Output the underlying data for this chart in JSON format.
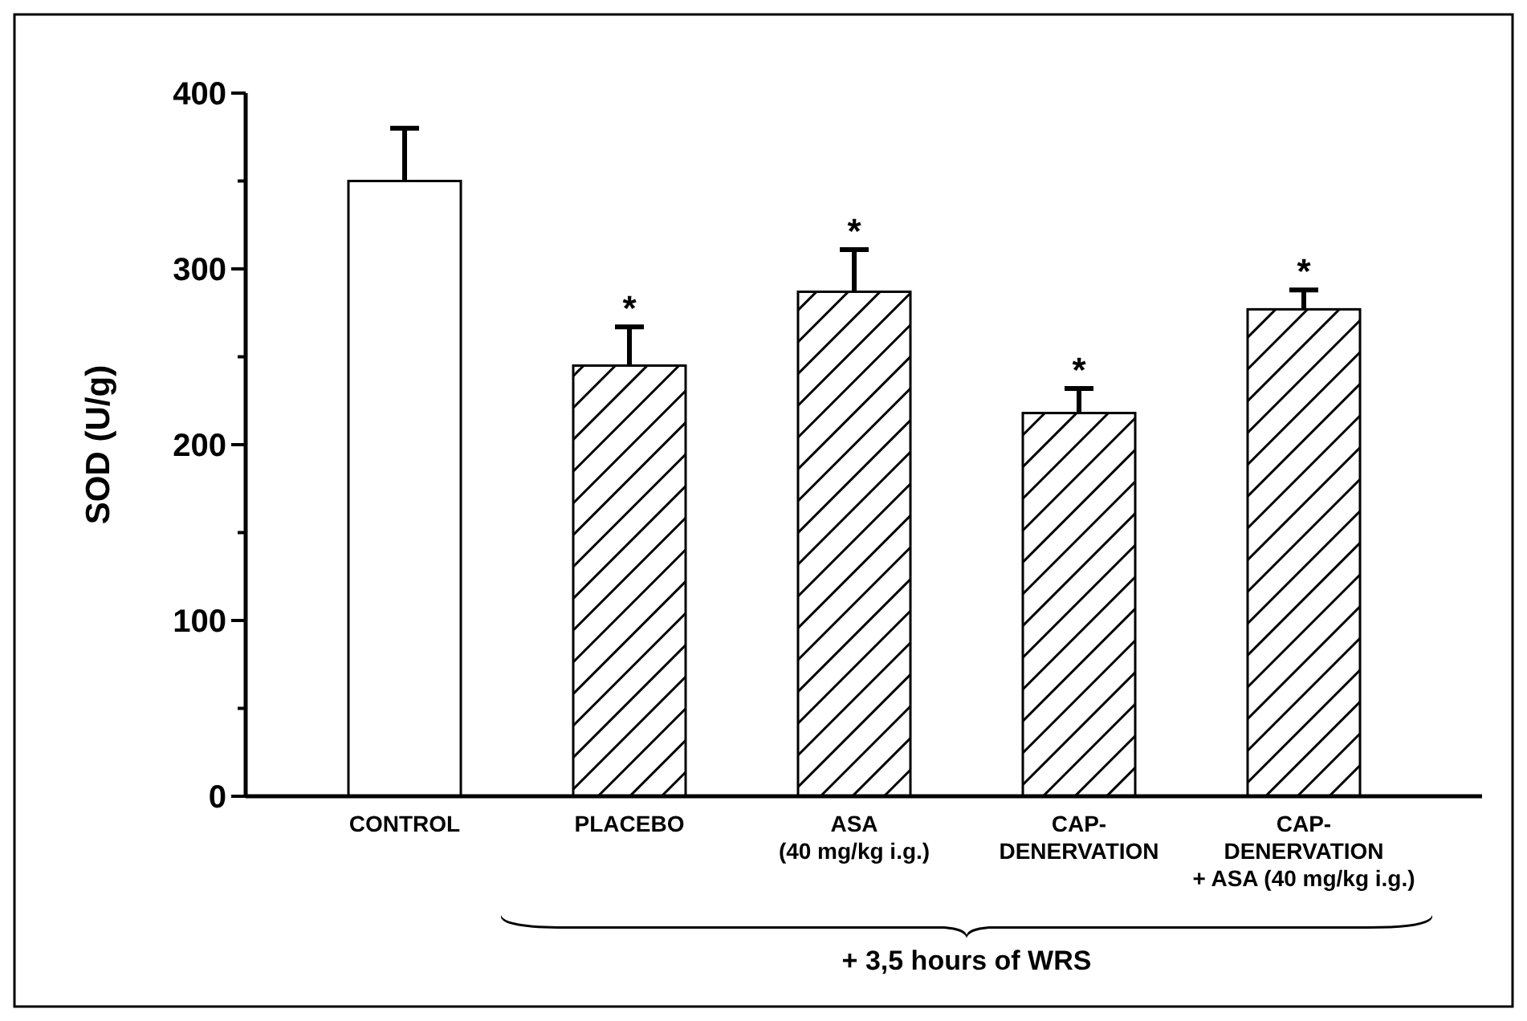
{
  "chart_data": {
    "type": "bar",
    "ylabel": "SOD (U/g)",
    "categories": [
      "CONTROL",
      "PLACEBO",
      "ASA\n(40 mg/kg i.g.)",
      "CAP-\nDENERVATION",
      "CAP-\nDENERVATION\n+ ASA (40 mg/kg i.g.)"
    ],
    "values": [
      350,
      245,
      287,
      218,
      277
    ],
    "errors": [
      [
        350,
        380
      ],
      [
        245,
        267
      ],
      [
        287,
        311
      ],
      [
        218,
        232
      ],
      [
        277,
        288
      ]
    ],
    "colors": [
      "#ffffff",
      "#000000",
      "#000000",
      "#000000",
      "#000000"
    ],
    "value_labels": [
      null,
      "*",
      "*",
      "*",
      "*"
    ],
    "ylim": [
      0,
      400
    ],
    "yticks": [
      0,
      {
        "value": 50,
        "label": null
      },
      100,
      {
        "value": 150,
        "label": null
      },
      200,
      {
        "value": 250,
        "label": null
      },
      300,
      {
        "value": 350,
        "label": null
      },
      400
    ],
    "annotations": [
      "+ 3,5 hours of WRS"
    ]
  }
}
